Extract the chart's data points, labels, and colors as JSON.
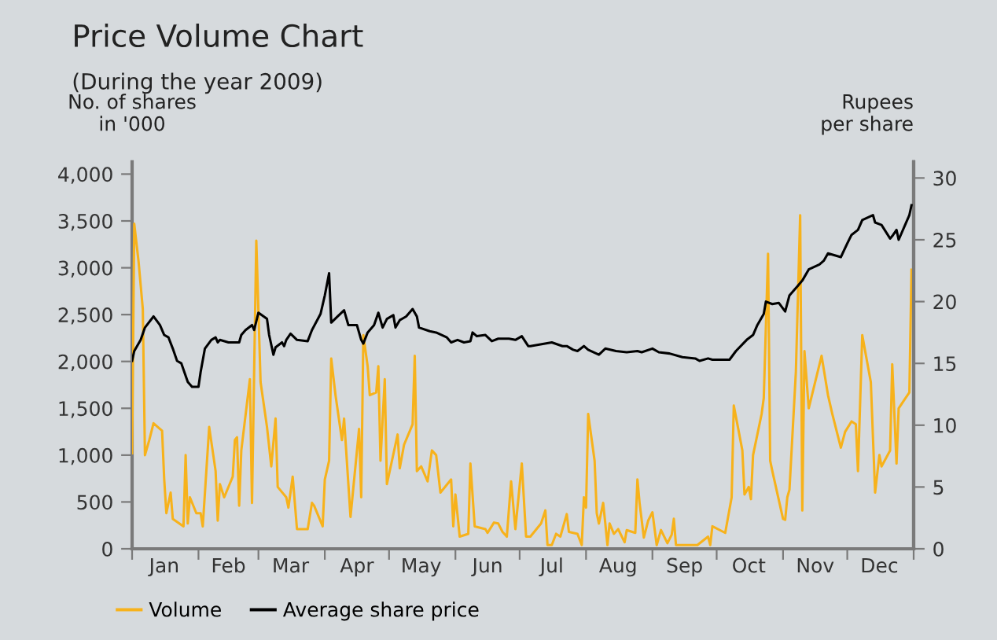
{
  "chart_data": {
    "type": "line",
    "title": "Price Volume Chart",
    "subtitle": "(During the year 2009)",
    "ylabel": "No. of shares\nin '000",
    "y2label": "Rupees\nper share",
    "xlim": [
      "2009-01-01",
      "2010-01-01"
    ],
    "xticks": [
      {
        "value": "2009-01-01",
        "label": null
      },
      {
        "value": "2009-02-01",
        "label": null
      },
      {
        "value": "2009-03-01",
        "label": null
      },
      {
        "value": "2009-04-01",
        "label": null
      },
      {
        "value": "2009-05-01",
        "label": null
      },
      {
        "value": "2009-06-01",
        "label": null
      },
      {
        "value": "2009-07-01",
        "label": null
      },
      {
        "value": "2009-08-01",
        "label": null
      },
      {
        "value": "2009-09-01",
        "label": null
      },
      {
        "value": "2009-10-01",
        "label": null
      },
      {
        "value": "2009-11-01",
        "label": null
      },
      {
        "value": "2009-12-01",
        "label": null
      },
      {
        "value": "2010-01-01",
        "label": null
      },
      {
        "value": "2009-01-16",
        "label": "Jan"
      },
      {
        "value": "2009-02-15",
        "label": "Feb"
      },
      {
        "value": "2009-03-16",
        "label": "Mar"
      },
      {
        "value": "2009-04-16",
        "label": "Apr"
      },
      {
        "value": "2009-05-16",
        "label": "May"
      },
      {
        "value": "2009-06-16",
        "label": "Jun"
      },
      {
        "value": "2009-07-16",
        "label": "Jul"
      },
      {
        "value": "2009-08-16",
        "label": "Aug"
      },
      {
        "value": "2009-09-16",
        "label": "Sep"
      },
      {
        "value": "2009-10-16",
        "label": "Oct"
      },
      {
        "value": "2009-11-16",
        "label": "Nov"
      },
      {
        "value": "2009-12-16",
        "label": "Dec"
      }
    ],
    "ylim": [
      0,
      4130
    ],
    "yticks": [
      0,
      500,
      {
        "value": 1000,
        "label": "1,000"
      },
      {
        "value": 1500,
        "label": "1,500"
      },
      {
        "value": 2000,
        "label": "2,000"
      },
      {
        "value": 2500,
        "label": "2,500"
      },
      {
        "value": 3000,
        "label": "3,000"
      },
      {
        "value": 3500,
        "label": "3,500"
      },
      {
        "value": 4000,
        "label": "4,000"
      }
    ],
    "y2lim": [
      0,
      31.3
    ],
    "y2ticks": [
      0,
      5,
      10,
      15,
      20,
      25,
      30
    ],
    "grid": false,
    "legend": "bottom left",
    "marker": "none",
    "line_style": "solid",
    "series": [
      {
        "name": "Volume",
        "color": "#f7b21b",
        "axis": "y",
        "x": [
          "2009-01-01",
          "2009-01-02",
          "2009-01-04",
          "2009-01-06",
          "2009-01-07",
          "2009-01-09",
          "2009-01-11",
          "2009-01-15",
          "2009-01-16",
          "2009-01-17",
          "2009-01-19",
          "2009-01-20",
          "2009-01-25",
          "2009-01-26",
          "2009-01-27",
          "2009-01-28",
          "2009-01-31",
          "2009-02-02",
          "2009-02-03",
          "2009-02-06",
          "2009-02-09",
          "2009-02-10",
          "2009-02-11",
          "2009-02-13",
          "2009-02-17",
          "2009-02-18",
          "2009-02-19",
          "2009-02-20",
          "2009-02-21",
          "2009-02-25",
          "2009-02-26",
          "2009-02-28",
          "2009-03-02",
          "2009-03-05",
          "2009-03-07",
          "2009-03-09",
          "2009-03-10",
          "2009-03-14",
          "2009-03-15",
          "2009-03-17",
          "2009-03-19",
          "2009-03-24",
          "2009-03-26",
          "2009-03-27",
          "2009-03-31",
          "2009-04-01",
          "2009-04-03",
          "2009-04-04",
          "2009-04-06",
          "2009-04-09",
          "2009-04-10",
          "2009-04-13",
          "2009-04-17",
          "2009-04-18",
          "2009-04-19",
          "2009-04-21",
          "2009-04-22",
          "2009-04-25",
          "2009-04-26",
          "2009-04-27",
          "2009-04-29",
          "2009-04-30",
          "2009-05-05",
          "2009-05-06",
          "2009-05-08",
          "2009-05-12",
          "2009-05-13",
          "2009-05-14",
          "2009-05-16",
          "2009-05-19",
          "2009-05-21",
          "2009-05-23",
          "2009-05-25",
          "2009-05-30",
          "2009-05-31",
          "2009-06-01",
          "2009-06-03",
          "2009-06-07",
          "2009-06-08",
          "2009-06-10",
          "2009-06-15",
          "2009-06-16",
          "2009-06-19",
          "2009-06-21",
          "2009-06-23",
          "2009-06-25",
          "2009-06-27",
          "2009-06-29",
          "2009-07-02",
          "2009-07-04",
          "2009-07-06",
          "2009-07-11",
          "2009-07-13",
          "2009-07-14",
          "2009-07-16",
          "2009-07-18",
          "2009-07-20",
          "2009-07-23",
          "2009-07-24",
          "2009-07-28",
          "2009-07-30",
          "2009-07-31",
          "2009-08-01",
          "2009-08-02",
          "2009-08-05",
          "2009-08-06",
          "2009-08-07",
          "2009-08-09",
          "2009-08-10",
          "2009-08-11",
          "2009-08-12",
          "2009-08-14",
          "2009-08-16",
          "2009-08-19",
          "2009-08-20",
          "2009-08-24",
          "2009-08-25",
          "2009-08-26",
          "2009-08-28",
          "2009-08-30",
          "2009-09-01",
          "2009-09-03",
          "2009-09-05",
          "2009-09-08",
          "2009-09-10",
          "2009-09-11",
          "2009-09-12",
          "2009-09-22",
          "2009-09-27",
          "2009-09-28",
          "2009-09-29",
          "2009-10-05",
          "2009-10-08",
          "2009-10-09",
          "2009-10-13",
          "2009-10-14",
          "2009-10-16",
          "2009-10-17",
          "2009-10-18",
          "2009-10-22",
          "2009-10-23",
          "2009-10-25",
          "2009-10-26",
          "2009-10-27",
          "2009-11-01",
          "2009-11-02",
          "2009-11-03",
          "2009-11-04",
          "2009-11-07",
          "2009-11-09",
          "2009-11-10",
          "2009-11-11",
          "2009-11-13",
          "2009-11-19",
          "2009-11-22",
          "2009-11-24",
          "2009-11-28",
          "2009-11-30",
          "2009-12-03",
          "2009-12-05",
          "2009-12-06",
          "2009-12-08",
          "2009-12-12",
          "2009-12-14",
          "2009-12-16",
          "2009-12-17",
          "2009-12-21",
          "2009-12-22",
          "2009-12-24",
          "2009-12-25",
          "2009-12-30",
          "2009-12-31"
        ],
        "values": [
          1020,
          3470,
          3070,
          2560,
          1000,
          1160,
          1340,
          1260,
          740,
          380,
          600,
          320,
          240,
          1000,
          270,
          550,
          380,
          380,
          240,
          1300,
          830,
          300,
          690,
          550,
          770,
          1160,
          1190,
          460,
          1050,
          1810,
          490,
          3290,
          1780,
          1300,
          880,
          1390,
          660,
          550,
          440,
          770,
          210,
          210,
          490,
          460,
          240,
          740,
          940,
          2030,
          1640,
          1160,
          1390,
          340,
          1280,
          550,
          2280,
          1950,
          1640,
          1670,
          1950,
          940,
          1810,
          690,
          1220,
          860,
          1110,
          1330,
          2060,
          830,
          880,
          720,
          1050,
          1000,
          600,
          740,
          240,
          580,
          130,
          160,
          910,
          240,
          210,
          170,
          280,
          270,
          180,
          130,
          720,
          210,
          910,
          130,
          130,
          270,
          410,
          40,
          40,
          160,
          130,
          370,
          180,
          160,
          40,
          550,
          440,
          1440,
          940,
          380,
          270,
          490,
          270,
          40,
          270,
          160,
          210,
          70,
          200,
          170,
          740,
          490,
          120,
          300,
          390,
          40,
          200,
          60,
          150,
          320,
          40,
          40,
          130,
          40,
          240,
          170,
          550,
          1530,
          1050,
          580,
          660,
          530,
          1000,
          1440,
          1610,
          3150,
          940,
          830,
          320,
          310,
          550,
          630,
          1890,
          3560,
          410,
          2110,
          1500,
          2060,
          1640,
          1440,
          1080,
          1250,
          1360,
          1330,
          830,
          2280,
          1780,
          600,
          1000,
          880,
          1050,
          1970,
          910,
          1500,
          1670,
          2980
        ]
      },
      {
        "name": "Average share price",
        "color": "#000000",
        "axis": "y2",
        "x": [
          "2009-01-01",
          "2009-01-02",
          "2009-01-05",
          "2009-01-07",
          "2009-01-11",
          "2009-01-14",
          "2009-01-16",
          "2009-01-18",
          "2009-01-20",
          "2009-01-22",
          "2009-01-24",
          "2009-01-27",
          "2009-01-29",
          "2009-02-01",
          "2009-02-02",
          "2009-02-04",
          "2009-02-07",
          "2009-02-09",
          "2009-02-10",
          "2009-02-11",
          "2009-02-15",
          "2009-02-20",
          "2009-02-21",
          "2009-02-23",
          "2009-02-26",
          "2009-02-27",
          "2009-03-01",
          "2009-03-05",
          "2009-03-06",
          "2009-03-08",
          "2009-03-09",
          "2009-03-12",
          "2009-03-13",
          "2009-03-14",
          "2009-03-16",
          "2009-03-19",
          "2009-03-24",
          "2009-03-26",
          "2009-03-30",
          "2009-04-01",
          "2009-04-03",
          "2009-04-04",
          "2009-04-07",
          "2009-04-10",
          "2009-04-12",
          "2009-04-16",
          "2009-04-18",
          "2009-04-19",
          "2009-04-21",
          "2009-04-24",
          "2009-04-26",
          "2009-04-28",
          "2009-04-30",
          "2009-05-03",
          "2009-05-04",
          "2009-05-06",
          "2009-05-09",
          "2009-05-12",
          "2009-05-14",
          "2009-05-15",
          "2009-05-20",
          "2009-05-23",
          "2009-05-28",
          "2009-05-30",
          "2009-06-02",
          "2009-06-05",
          "2009-06-08",
          "2009-06-09",
          "2009-06-11",
          "2009-06-15",
          "2009-06-18",
          "2009-06-21",
          "2009-06-26",
          "2009-06-29",
          "2009-07-02",
          "2009-07-05",
          "2009-07-06",
          "2009-07-16",
          "2009-07-21",
          "2009-07-23",
          "2009-07-26",
          "2009-07-28",
          "2009-07-31",
          "2009-08-02",
          "2009-08-07",
          "2009-08-10",
          "2009-08-15",
          "2009-08-20",
          "2009-08-25",
          "2009-08-27",
          "2009-09-01",
          "2009-09-04",
          "2009-09-09",
          "2009-09-15",
          "2009-09-21",
          "2009-09-23",
          "2009-09-27",
          "2009-09-29",
          "2009-10-07",
          "2009-10-10",
          "2009-10-15",
          "2009-10-18",
          "2009-10-20",
          "2009-10-23",
          "2009-10-24",
          "2009-10-27",
          "2009-10-30",
          "2009-11-02",
          "2009-11-04",
          "2009-11-08",
          "2009-11-10",
          "2009-11-13",
          "2009-11-18",
          "2009-11-20",
          "2009-11-22",
          "2009-11-28",
          "2009-12-01",
          "2009-12-03",
          "2009-12-06",
          "2009-12-08",
          "2009-12-13",
          "2009-12-14",
          "2009-12-17",
          "2009-12-21",
          "2009-12-22",
          "2009-12-24",
          "2009-12-25",
          "2009-12-28",
          "2009-12-30",
          "2009-12-31"
        ],
        "values": [
          15.2,
          16.0,
          16.9,
          17.9,
          18.8,
          18.1,
          17.3,
          17.1,
          16.2,
          15.2,
          15.0,
          13.5,
          13.1,
          13.1,
          14.3,
          16.2,
          16.9,
          17.1,
          16.7,
          16.9,
          16.7,
          16.7,
          17.3,
          17.7,
          18.1,
          17.7,
          19.1,
          18.6,
          17.3,
          15.7,
          16.3,
          16.7,
          16.4,
          16.9,
          17.4,
          16.9,
          16.8,
          17.7,
          19.0,
          20.5,
          22.3,
          18.3,
          18.8,
          19.3,
          18.1,
          18.1,
          16.9,
          16.6,
          17.5,
          18.1,
          19.1,
          17.9,
          18.6,
          18.9,
          17.9,
          18.5,
          18.8,
          19.4,
          18.8,
          17.9,
          17.6,
          17.5,
          17.1,
          16.7,
          16.9,
          16.7,
          16.8,
          17.5,
          17.2,
          17.3,
          16.8,
          17.0,
          17.0,
          16.9,
          17.2,
          16.4,
          16.4,
          16.7,
          16.4,
          16.4,
          16.1,
          16.0,
          16.4,
          16.1,
          15.7,
          16.2,
          16.0,
          15.9,
          16.0,
          15.9,
          16.2,
          15.9,
          15.8,
          15.5,
          15.4,
          15.2,
          15.4,
          15.3,
          15.3,
          16.0,
          16.9,
          17.3,
          18.1,
          19.0,
          20.0,
          19.8,
          19.9,
          19.2,
          20.5,
          21.3,
          21.7,
          22.6,
          23.0,
          23.3,
          23.9,
          23.6,
          24.7,
          25.4,
          25.8,
          26.6,
          27.0,
          26.4,
          26.2,
          25.1,
          25.3,
          25.8,
          25.0,
          26.2,
          27.0,
          27.8
        ]
      }
    ]
  }
}
